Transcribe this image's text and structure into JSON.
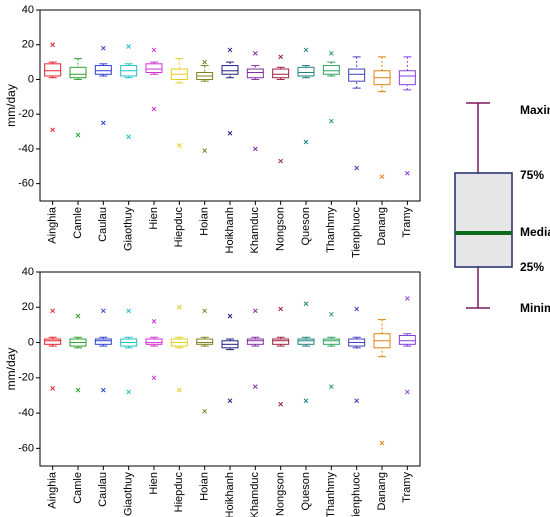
{
  "chart_data": [
    {
      "type": "box",
      "ylabel": "mm/day",
      "ylim": [
        -70,
        40
      ],
      "yticks": [
        -60,
        -40,
        -20,
        0,
        20,
        40
      ],
      "categories": [
        "Ainghia",
        "Camle",
        "Caulau",
        "Giaothuy",
        "Hien",
        "Hiepduc",
        "Hoian",
        "Hoikhanh",
        "Khamduc",
        "Nongson",
        "Queson",
        "Thanhmy",
        "Tienphuoc",
        "Danang",
        "Tramy"
      ],
      "colors": [
        "#e8202a",
        "#2ca02c",
        "#3040d0",
        "#20c0c8",
        "#d030d0",
        "#e0d020",
        "#808020",
        "#202080",
        "#8030a0",
        "#a02040",
        "#208080",
        "#30a060",
        "#4040c0",
        "#e08010",
        "#8040e0"
      ],
      "boxes": [
        {
          "min": 1,
          "q1": 2,
          "median": 5,
          "q3": 9,
          "max": 10,
          "high": 20,
          "low": -29
        },
        {
          "min": 0,
          "q1": 1,
          "median": 3,
          "q3": 7,
          "max": 12,
          "high": null,
          "low": -32
        },
        {
          "min": 2,
          "q1": 3,
          "median": 5,
          "q3": 8,
          "max": 9,
          "high": 18,
          "low": -25
        },
        {
          "min": 1,
          "q1": 2,
          "median": 5,
          "q3": 8,
          "max": 9,
          "high": 19,
          "low": -33
        },
        {
          "min": 3,
          "q1": 4,
          "median": 6,
          "q3": 9,
          "max": 10,
          "high": 17,
          "low": -17
        },
        {
          "min": -2,
          "q1": 0,
          "median": 3,
          "q3": 6,
          "max": 12,
          "high": null,
          "low": -38
        },
        {
          "min": -1,
          "q1": 0,
          "median": 2,
          "q3": 4,
          "max": 8,
          "high": 10,
          "low": -41
        },
        {
          "min": 1,
          "q1": 3,
          "median": 5,
          "q3": 8,
          "max": 10,
          "high": 17,
          "low": -31
        },
        {
          "min": 0,
          "q1": 1,
          "median": 4,
          "q3": 6,
          "max": 8,
          "high": 15,
          "low": -40
        },
        {
          "min": 0,
          "q1": 1,
          "median": 3,
          "q3": 6,
          "max": 7,
          "high": 13,
          "low": -47
        },
        {
          "min": 1,
          "q1": 2,
          "median": 4,
          "q3": 7,
          "max": 8,
          "high": 17,
          "low": -36
        },
        {
          "min": 2,
          "q1": 3,
          "median": 5,
          "q3": 8,
          "max": 10,
          "high": 15,
          "low": -24
        },
        {
          "min": -5,
          "q1": -1,
          "median": 3,
          "q3": 6,
          "max": 13,
          "high": null,
          "low": -51
        },
        {
          "min": -7,
          "q1": -3,
          "median": 1,
          "q3": 5,
          "max": 13,
          "high": null,
          "low": -56
        },
        {
          "min": -6,
          "q1": -3,
          "median": 2,
          "q3": 5,
          "max": 13,
          "high": null,
          "low": -54
        }
      ]
    },
    {
      "type": "box",
      "ylabel": "mm/day",
      "ylim": [
        -70,
        40
      ],
      "yticks": [
        -60,
        -40,
        -20,
        0,
        20,
        40
      ],
      "categories": [
        "Ainghia",
        "Camle",
        "Caulau",
        "Giaothuy",
        "Hien",
        "Hiepduc",
        "Hoian",
        "Hoikhanh",
        "Khamduc",
        "Nongson",
        "Queson",
        "Thanhmy",
        "Tienphuoc",
        "Danang",
        "Tramy"
      ],
      "colors": [
        "#e8202a",
        "#2ca02c",
        "#3040d0",
        "#20c0c8",
        "#d030d0",
        "#e0d020",
        "#808020",
        "#202080",
        "#8030a0",
        "#a02040",
        "#208080",
        "#30a060",
        "#4040c0",
        "#e08010",
        "#8040e0"
      ],
      "boxes": [
        {
          "min": -2,
          "q1": -1,
          "median": 1,
          "q3": 2,
          "max": 3,
          "high": 18,
          "low": -26
        },
        {
          "min": -3,
          "q1": -2,
          "median": 0,
          "q3": 2,
          "max": 3,
          "high": 15,
          "low": -27
        },
        {
          "min": -2,
          "q1": -1,
          "median": 1,
          "q3": 2,
          "max": 3,
          "high": 18,
          "low": -27
        },
        {
          "min": -3,
          "q1": -2,
          "median": 0,
          "q3": 2,
          "max": 3,
          "high": 18,
          "low": -28
        },
        {
          "min": -2,
          "q1": -1,
          "median": 0,
          "q3": 2,
          "max": 3,
          "high": 12,
          "low": -20
        },
        {
          "min": -3,
          "q1": -2,
          "median": 0,
          "q3": 2,
          "max": 3,
          "high": 20,
          "low": -27
        },
        {
          "min": -2,
          "q1": -1,
          "median": 0,
          "q3": 2,
          "max": 3,
          "high": 18,
          "low": -39
        },
        {
          "min": -4,
          "q1": -3,
          "median": -1,
          "q3": 1,
          "max": 2,
          "high": 15,
          "low": -33
        },
        {
          "min": -2,
          "q1": -1,
          "median": 1,
          "q3": 2,
          "max": 3,
          "high": 18,
          "low": -25
        },
        {
          "min": -2,
          "q1": -1,
          "median": 1,
          "q3": 2,
          "max": 3,
          "high": 19,
          "low": -35
        },
        {
          "min": -2,
          "q1": -1,
          "median": 1,
          "q3": 2,
          "max": 3,
          "high": 22,
          "low": -33
        },
        {
          "min": -2,
          "q1": -1,
          "median": 1,
          "q3": 2,
          "max": 3,
          "high": 16,
          "low": -25
        },
        {
          "min": -3,
          "q1": -2,
          "median": 0,
          "q3": 2,
          "max": 3,
          "high": 19,
          "low": -33
        },
        {
          "min": -8,
          "q1": -3,
          "median": 1,
          "q3": 5,
          "max": 13,
          "high": null,
          "low": -57
        },
        {
          "min": -2,
          "q1": -1,
          "median": 1,
          "q3": 4,
          "max": 5,
          "high": 25,
          "low": -28
        }
      ]
    }
  ],
  "legend_diagram": {
    "maximum": "Maximum",
    "q3": "75%",
    "median": "Median",
    "q1": "25%",
    "minimum": "Minimum"
  }
}
